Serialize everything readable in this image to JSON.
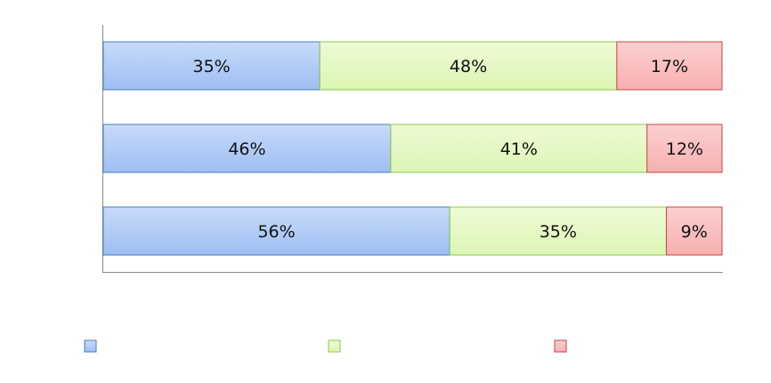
{
  "chart_data": {
    "type": "bar",
    "orientation": "horizontal",
    "stacked": "percent",
    "title": "",
    "xlabel": "",
    "ylabel": "",
    "xlim": [
      0,
      100
    ],
    "grid": false,
    "legend_position": "bottom",
    "categories": [
      "",
      "",
      ""
    ],
    "series": [
      {
        "values": [
          35,
          46,
          56
        ],
        "labels": [
          "35%",
          "46%",
          "56%"
        ],
        "color": "#a9c6f5",
        "stroke": "#4a7ebb"
      },
      {
        "values": [
          48,
          41,
          35
        ],
        "labels": [
          "48%",
          "41%",
          "35%"
        ],
        "color": "#e4f8c4",
        "stroke": "#8cc84b"
      },
      {
        "values": [
          17,
          12,
          9
        ],
        "labels": [
          "17%",
          "12%",
          "9%"
        ],
        "color": "#f9c0c0",
        "stroke": "#cc4444"
      }
    ]
  }
}
